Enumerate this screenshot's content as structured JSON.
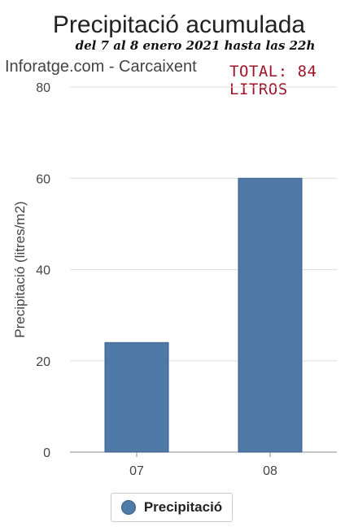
{
  "chart_data": {
    "type": "bar",
    "title": "Precipitació acumulada",
    "subtitle": "del 7 al 8 enero 2021 hasta las 22h",
    "source_label": "Inforatge.com - Carcaixent",
    "annotation": "TOTAL: 84 LITROS",
    "ylabel": "Precipitació (litres/m2)",
    "xlabel": "",
    "categories": [
      "07",
      "08"
    ],
    "series": [
      {
        "name": "Precipitació",
        "values": [
          24,
          60
        ]
      }
    ],
    "ylim": [
      0,
      80
    ],
    "yticks": [
      0,
      20,
      40,
      60,
      80
    ],
    "grid": true,
    "legend_position": "bottom",
    "colors": {
      "bar": "#4f7aa8",
      "bar_stroke": "#3a5f88",
      "grid": "#dddddd",
      "axis": "#888888"
    }
  }
}
